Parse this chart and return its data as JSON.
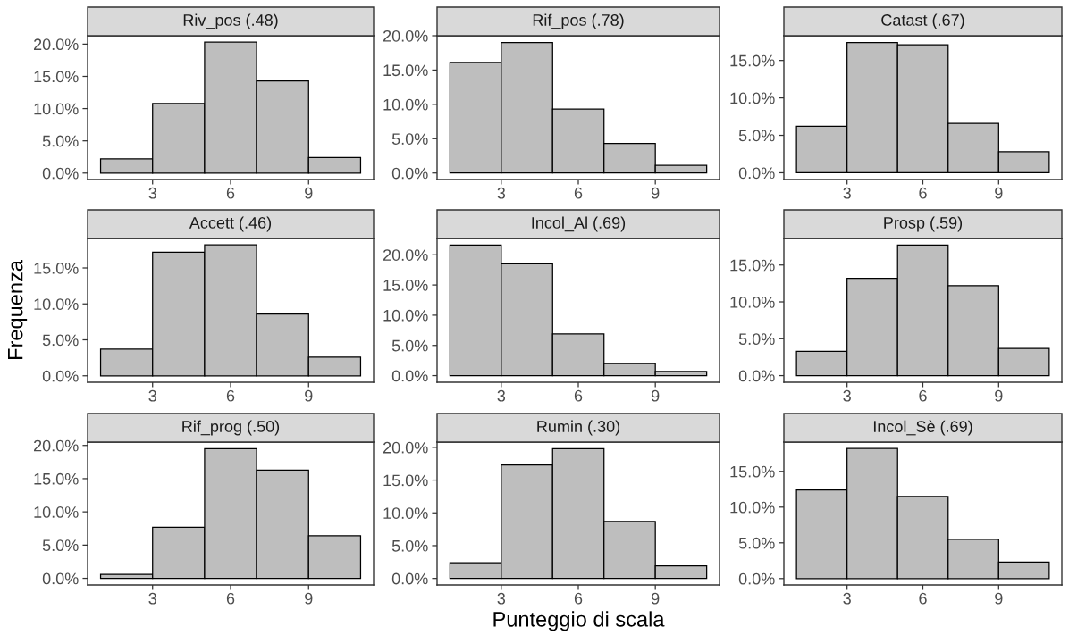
{
  "chart_data": [
    {
      "type": "histogram",
      "title": "Riv_pos (.48)",
      "bins": [
        1,
        3,
        5,
        7,
        9,
        11
      ],
      "values": [
        2.2,
        10.8,
        20.3,
        14.3,
        2.4
      ],
      "color": "#bebebe",
      "xlim": [
        0.5,
        11.5
      ],
      "xticks": [
        3,
        6,
        9
      ],
      "ylim": [
        -1.0,
        21.3
      ],
      "yticks": [
        {
          "value": 0,
          "label": "0.0%"
        },
        {
          "value": 5,
          "label": "5.0%"
        },
        {
          "value": 10,
          "label": "10.0%"
        },
        {
          "value": 15,
          "label": "15.0%"
        },
        {
          "value": 20,
          "label": "20.0%"
        }
      ]
    },
    {
      "type": "histogram",
      "title": "Rif_pos (.78)",
      "bins": [
        1,
        3,
        5,
        7,
        9,
        11
      ],
      "values": [
        16.1,
        19.0,
        9.3,
        4.3,
        1.1
      ],
      "color": "#bebebe",
      "xlim": [
        0.5,
        11.5
      ],
      "xticks": [
        3,
        6,
        9
      ],
      "ylim": [
        -0.95,
        20.0
      ],
      "yticks": [
        {
          "value": 0,
          "label": "0.0%"
        },
        {
          "value": 5,
          "label": "5.0%"
        },
        {
          "value": 10,
          "label": "10.0%"
        },
        {
          "value": 15,
          "label": "15.0%"
        },
        {
          "value": 20,
          "label": "20.0%"
        }
      ]
    },
    {
      "type": "histogram",
      "title": "Catast (.67)",
      "bins": [
        1,
        3,
        5,
        7,
        9,
        11
      ],
      "values": [
        6.2,
        17.4,
        17.1,
        6.6,
        2.8
      ],
      "color": "#bebebe",
      "xlim": [
        0.5,
        11.5
      ],
      "xticks": [
        3,
        6,
        9
      ],
      "ylim": [
        -0.9,
        18.3
      ],
      "yticks": [
        {
          "value": 0,
          "label": "0.0%"
        },
        {
          "value": 5,
          "label": "5.0%"
        },
        {
          "value": 10,
          "label": "10.0%"
        },
        {
          "value": 15,
          "label": "15.0%"
        }
      ]
    },
    {
      "type": "histogram",
      "title": "Accett (.46)",
      "ylabel": "Frequenza",
      "bins": [
        1,
        3,
        5,
        7,
        9,
        11
      ],
      "values": [
        3.7,
        17.2,
        18.2,
        8.6,
        2.6
      ],
      "color": "#bebebe",
      "xlim": [
        0.5,
        11.5
      ],
      "xticks": [
        3,
        6,
        9
      ],
      "ylim": [
        -0.9,
        19.1
      ],
      "yticks": [
        {
          "value": 0,
          "label": "0.0%"
        },
        {
          "value": 5,
          "label": "5.0%"
        },
        {
          "value": 10,
          "label": "10.0%"
        },
        {
          "value": 15,
          "label": "15.0%"
        }
      ]
    },
    {
      "type": "histogram",
      "title": "Incol_Al (.69)",
      "bins": [
        1,
        3,
        5,
        7,
        9,
        11
      ],
      "values": [
        21.6,
        18.5,
        6.9,
        2.0,
        0.7
      ],
      "color": "#bebebe",
      "xlim": [
        0.5,
        11.5
      ],
      "xticks": [
        3,
        6,
        9
      ],
      "ylim": [
        -1.1,
        22.7
      ],
      "yticks": [
        {
          "value": 0,
          "label": "0.0%"
        },
        {
          "value": 5,
          "label": "5.0%"
        },
        {
          "value": 10,
          "label": "10.0%"
        },
        {
          "value": 15,
          "label": "15.0%"
        },
        {
          "value": 20,
          "label": "20.0%"
        }
      ]
    },
    {
      "type": "histogram",
      "title": "Prosp (.59)",
      "bins": [
        1,
        3,
        5,
        7,
        9,
        11
      ],
      "values": [
        3.3,
        13.2,
        17.7,
        12.2,
        3.7
      ],
      "color": "#bebebe",
      "xlim": [
        0.5,
        11.5
      ],
      "xticks": [
        3,
        6,
        9
      ],
      "ylim": [
        -0.9,
        18.6
      ],
      "yticks": [
        {
          "value": 0,
          "label": "0.0%"
        },
        {
          "value": 5,
          "label": "5.0%"
        },
        {
          "value": 10,
          "label": "10.0%"
        },
        {
          "value": 15,
          "label": "15.0%"
        }
      ]
    },
    {
      "type": "histogram",
      "title": "Rif_prog (.50)",
      "bins": [
        1,
        3,
        5,
        7,
        9,
        11
      ],
      "values": [
        0.6,
        7.7,
        19.5,
        16.3,
        6.4
      ],
      "color": "#bebebe",
      "xlim": [
        0.5,
        11.5
      ],
      "xticks": [
        3,
        6,
        9
      ],
      "ylim": [
        -1.0,
        20.5
      ],
      "yticks": [
        {
          "value": 0,
          "label": "0.0%"
        },
        {
          "value": 5,
          "label": "5.0%"
        },
        {
          "value": 10,
          "label": "10.0%"
        },
        {
          "value": 15,
          "label": "15.0%"
        },
        {
          "value": 20,
          "label": "20.0%"
        }
      ]
    },
    {
      "type": "histogram",
      "title": "Rumin (.30)",
      "xlabel": "Punteggio di scala",
      "bins": [
        1,
        3,
        5,
        7,
        9,
        11
      ],
      "values": [
        2.4,
        17.3,
        19.8,
        8.7,
        1.9
      ],
      "color": "#bebebe",
      "xlim": [
        0.5,
        11.5
      ],
      "xticks": [
        3,
        6,
        9
      ],
      "ylim": [
        -1.0,
        20.8
      ],
      "yticks": [
        {
          "value": 0,
          "label": "0.0%"
        },
        {
          "value": 5,
          "label": "5.0%"
        },
        {
          "value": 10,
          "label": "10.0%"
        },
        {
          "value": 15,
          "label": "15.0%"
        },
        {
          "value": 20,
          "label": "20.0%"
        }
      ]
    },
    {
      "type": "histogram",
      "title": "Incol_Sè (.69)",
      "bins": [
        1,
        3,
        5,
        7,
        9,
        11
      ],
      "values": [
        12.4,
        18.2,
        11.5,
        5.5,
        2.3
      ],
      "color": "#bebebe",
      "xlim": [
        0.5,
        11.5
      ],
      "xticks": [
        3,
        6,
        9
      ],
      "ylim": [
        -0.9,
        19.1
      ],
      "yticks": [
        {
          "value": 0,
          "label": "0.0%"
        },
        {
          "value": 5,
          "label": "5.0%"
        },
        {
          "value": 10,
          "label": "10.0%"
        },
        {
          "value": 15,
          "label": "15.0%"
        }
      ]
    }
  ]
}
